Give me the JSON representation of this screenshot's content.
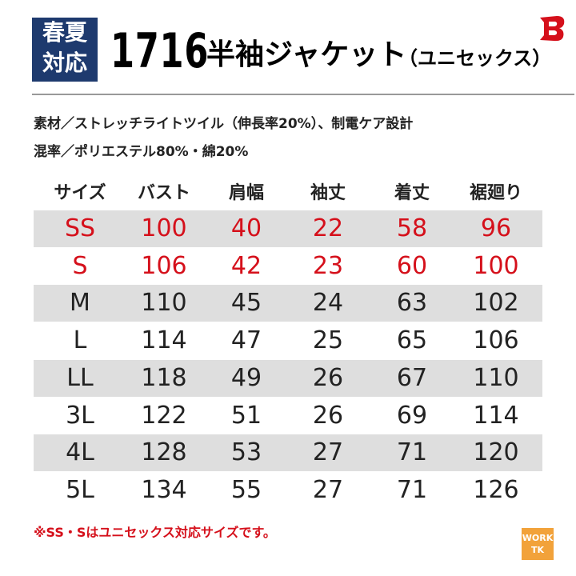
{
  "header": {
    "badge": [
      "春夏",
      "対応"
    ],
    "model": "1716",
    "title": "半袖ジャケット",
    "subtitle": "（ユニセックス）"
  },
  "specs": [
    "素材／ストレッチライトツイル（伸長率20%）、制電ケア設計",
    "混率／ポリエステル80%・綿20%"
  ],
  "table": {
    "columns": [
      "サイズ",
      "バスト",
      "肩幅",
      "袖丈",
      "着丈",
      "裾廻り"
    ],
    "rows": [
      [
        "SS",
        "100",
        "40",
        "22",
        "58",
        "96"
      ],
      [
        "S",
        "106",
        "42",
        "23",
        "60",
        "100"
      ],
      [
        "M",
        "110",
        "45",
        "24",
        "63",
        "102"
      ],
      [
        "L",
        "114",
        "47",
        "25",
        "65",
        "106"
      ],
      [
        "LL",
        "118",
        "49",
        "26",
        "67",
        "110"
      ],
      [
        "3L",
        "122",
        "51",
        "26",
        "69",
        "114"
      ],
      [
        "4L",
        "128",
        "53",
        "27",
        "71",
        "120"
      ],
      [
        "5L",
        "134",
        "55",
        "27",
        "71",
        "126"
      ]
    ]
  },
  "note": "※SS・Sはユニセックス対応サイズです。",
  "logo": [
    "WORK",
    "TK"
  ]
}
